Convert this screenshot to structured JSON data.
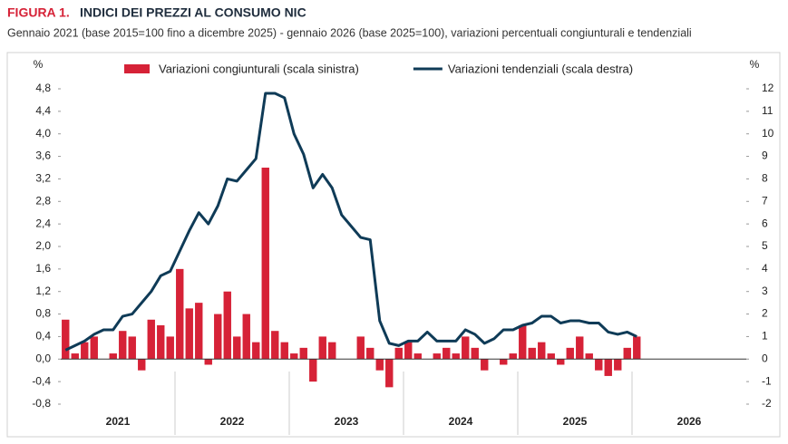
{
  "chart_data": {
    "type": "bar_line",
    "title_label": "FIGURA 1.",
    "title": "INDICI DEI PREZZI AL CONSUMO NIC",
    "subtitle": "Gennaio 2021 (base 2015=100 fino a dicembre 2025) - gennaio 2026 (base 2025=100), variazioni percentuali congiunturali e tendenziali",
    "y_unit": "%",
    "y2_unit": "%",
    "x_groups": [
      "2021",
      "2022",
      "2023",
      "2024",
      "2025",
      "2026"
    ],
    "categories": [
      null,
      null,
      null,
      null,
      null,
      null,
      null,
      null,
      null,
      null,
      null,
      null,
      null,
      null,
      null,
      null,
      null,
      null,
      null,
      null,
      null,
      null,
      null,
      null,
      null,
      null,
      null,
      null,
      null,
      null,
      null,
      null,
      null,
      null,
      null,
      null,
      null,
      null,
      null,
      null,
      null,
      null,
      null,
      null,
      null,
      null,
      null,
      null,
      null,
      null,
      null,
      null,
      null,
      null,
      null,
      null,
      null,
      null,
      null,
      null,
      null,
      null,
      null,
      null,
      null,
      null,
      null,
      null,
      null,
      null,
      null,
      null
    ],
    "series": [
      {
        "name": "Variazioni congiunturali (scala sinistra)",
        "type": "bar",
        "color": "#d62237",
        "axis": "y",
        "values": [
          0.7,
          0.1,
          0.3,
          0.4,
          0.0,
          0.1,
          0.5,
          0.4,
          -0.2,
          0.7,
          0.6,
          0.4,
          1.6,
          0.9,
          1.0,
          -0.1,
          0.8,
          1.2,
          0.4,
          0.8,
          0.3,
          3.4,
          0.5,
          0.3,
          0.1,
          0.2,
          -0.4,
          0.4,
          0.3,
          0.0,
          0.0,
          0.4,
          0.2,
          -0.2,
          -0.5,
          0.2,
          0.3,
          0.1,
          0.0,
          0.1,
          0.2,
          0.1,
          0.4,
          0.2,
          -0.2,
          0.0,
          -0.1,
          0.1,
          0.6,
          0.2,
          0.3,
          0.1,
          -0.1,
          0.2,
          0.4,
          0.1,
          -0.2,
          -0.3,
          -0.2,
          0.2,
          0.4,
          null,
          null,
          null,
          null,
          null,
          null,
          null,
          null,
          null,
          null,
          null
        ]
      },
      {
        "name": "Variazioni tendenziali (scala destra)",
        "type": "line",
        "color": "#0f3b57",
        "axis": "y2",
        "values": [
          0.4,
          0.6,
          0.8,
          1.1,
          1.3,
          1.3,
          1.9,
          2.0,
          2.5,
          3.0,
          3.7,
          3.9,
          4.8,
          5.7,
          6.5,
          6.0,
          6.8,
          8.0,
          7.9,
          8.4,
          8.9,
          11.8,
          11.8,
          11.6,
          10.0,
          9.1,
          7.6,
          8.2,
          7.6,
          6.4,
          5.9,
          5.4,
          5.3,
          1.7,
          0.7,
          0.6,
          0.8,
          0.8,
          1.2,
          0.8,
          0.8,
          0.8,
          1.3,
          1.1,
          0.7,
          0.9,
          1.3,
          1.3,
          1.5,
          1.6,
          1.9,
          1.9,
          1.6,
          1.7,
          1.7,
          1.6,
          1.6,
          1.2,
          1.1,
          1.2,
          1.0,
          null,
          null,
          null,
          null,
          null,
          null,
          null,
          null,
          null,
          null,
          null
        ]
      }
    ],
    "ylim": [
      -0.8,
      4.8
    ],
    "yticks": [
      {
        "value": -0.8,
        "label": "-0,8"
      },
      {
        "value": -0.4,
        "label": "-0,4"
      },
      {
        "value": 0,
        "label": "0,0"
      },
      {
        "value": 0.4,
        "label": "0,4"
      },
      {
        "value": 0.8,
        "label": "0,8"
      },
      {
        "value": 1.2,
        "label": "1,2"
      },
      {
        "value": 1.6,
        "label": "1,6"
      },
      {
        "value": 2.0,
        "label": "2,0"
      },
      {
        "value": 2.4,
        "label": "2,4"
      },
      {
        "value": 2.8,
        "label": "2,8"
      },
      {
        "value": 3.2,
        "label": "3,2"
      },
      {
        "value": 3.6,
        "label": "3,6"
      },
      {
        "value": 4.0,
        "label": "4,0"
      },
      {
        "value": 4.4,
        "label": "4,4"
      },
      {
        "value": 4.8,
        "label": "4,8"
      }
    ],
    "y2lim": [
      -2,
      12
    ],
    "y2ticks": [
      -2,
      -1,
      0,
      1,
      2,
      3,
      4,
      5,
      6,
      7,
      8,
      9,
      10,
      11,
      12
    ]
  }
}
